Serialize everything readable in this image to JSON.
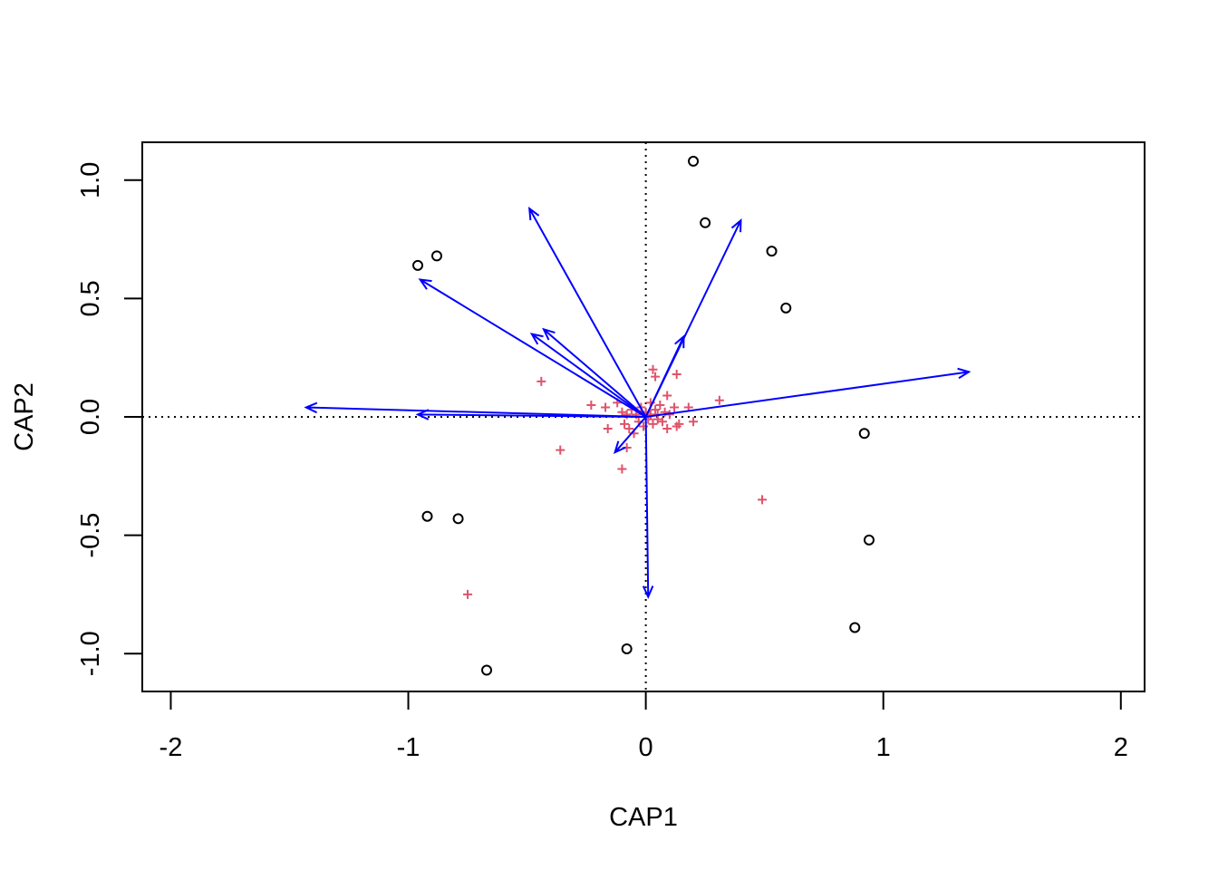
{
  "chart_data": {
    "type": "scatter",
    "title": "",
    "xlabel": "CAP1",
    "ylabel": "CAP2",
    "xlim": [
      -2.12,
      2.1
    ],
    "ylim": [
      -1.16,
      1.16
    ],
    "x_ticks": [
      -2,
      -1,
      0,
      1,
      2
    ],
    "x_tick_labels": [
      "-2",
      "-1",
      "0",
      "1",
      "2"
    ],
    "y_ticks": [
      -1.0,
      -0.5,
      0.0,
      0.5,
      1.0
    ],
    "y_tick_labels": [
      "-1.0",
      "-0.5",
      "0.0",
      "0.5",
      "1.0"
    ],
    "reference_lines": {
      "x": 0,
      "y": 0,
      "style": "dotted"
    },
    "grid": false,
    "legend": "none",
    "colors": {
      "sites": "#000000",
      "species": "#DF536B",
      "arrows": "#0000FF"
    },
    "sites": [
      {
        "x": 0.2,
        "y": 1.08
      },
      {
        "x": 0.25,
        "y": 0.82
      },
      {
        "x": 0.53,
        "y": 0.7
      },
      {
        "x": 0.59,
        "y": 0.46
      },
      {
        "x": -0.96,
        "y": 0.64
      },
      {
        "x": -0.88,
        "y": 0.68
      },
      {
        "x": 0.92,
        "y": -0.07
      },
      {
        "x": 0.94,
        "y": -0.52
      },
      {
        "x": 0.88,
        "y": -0.89
      },
      {
        "x": -0.92,
        "y": -0.42
      },
      {
        "x": -0.79,
        "y": -0.43
      },
      {
        "x": -0.67,
        "y": -1.07
      },
      {
        "x": -0.08,
        "y": -0.98
      }
    ],
    "species": [
      {
        "x": -0.44,
        "y": 0.15
      },
      {
        "x": -0.36,
        "y": -0.14
      },
      {
        "x": -0.75,
        "y": -0.75
      },
      {
        "x": 0.49,
        "y": -0.35
      },
      {
        "x": 0.31,
        "y": 0.07
      },
      {
        "x": -0.1,
        "y": -0.22
      },
      {
        "x": -0.08,
        "y": -0.13
      },
      {
        "x": 0.03,
        "y": 0.2
      },
      {
        "x": 0.04,
        "y": 0.17
      },
      {
        "x": 0.13,
        "y": 0.18
      },
      {
        "x": 0.09,
        "y": 0.09
      },
      {
        "x": -0.23,
        "y": 0.05
      },
      {
        "x": -0.17,
        "y": 0.04
      },
      {
        "x": -0.16,
        "y": -0.05
      },
      {
        "x": -0.12,
        "y": 0.06
      },
      {
        "x": -0.1,
        "y": 0.02
      },
      {
        "x": -0.09,
        "y": -0.03
      },
      {
        "x": -0.08,
        "y": 0.01
      },
      {
        "x": -0.07,
        "y": -0.05
      },
      {
        "x": -0.06,
        "y": 0.03
      },
      {
        "x": -0.05,
        "y": -0.07
      },
      {
        "x": -0.04,
        "y": 0.01
      },
      {
        "x": -0.03,
        "y": -0.02
      },
      {
        "x": -0.02,
        "y": 0.04
      },
      {
        "x": 0.0,
        "y": 0.02
      },
      {
        "x": 0.01,
        "y": -0.01
      },
      {
        "x": 0.02,
        "y": 0.06
      },
      {
        "x": 0.03,
        "y": -0.03
      },
      {
        "x": 0.04,
        "y": 0.03
      },
      {
        "x": 0.05,
        "y": -0.01
      },
      {
        "x": 0.06,
        "y": 0.05
      },
      {
        "x": 0.07,
        "y": -0.02
      },
      {
        "x": 0.08,
        "y": 0.02
      },
      {
        "x": 0.09,
        "y": -0.05
      },
      {
        "x": 0.1,
        "y": 0.01
      },
      {
        "x": 0.12,
        "y": 0.04
      },
      {
        "x": 0.13,
        "y": -0.04
      },
      {
        "x": 0.14,
        "y": -0.03
      },
      {
        "x": 0.18,
        "y": 0.04
      },
      {
        "x": 0.2,
        "y": -0.02
      },
      {
        "x": 0.02,
        "y": 0.01
      },
      {
        "x": 0.05,
        "y": 0.01
      },
      {
        "x": -0.01,
        "y": -0.04
      }
    ],
    "arrows": [
      {
        "x": 1.36,
        "y": 0.19
      },
      {
        "x": -1.43,
        "y": 0.04
      },
      {
        "x": -0.96,
        "y": 0.01
      },
      {
        "x": -0.95,
        "y": 0.58
      },
      {
        "x": -0.49,
        "y": 0.88
      },
      {
        "x": -0.48,
        "y": 0.35
      },
      {
        "x": -0.43,
        "y": 0.37
      },
      {
        "x": 0.4,
        "y": 0.83
      },
      {
        "x": 0.16,
        "y": 0.34
      },
      {
        "x": -0.13,
        "y": -0.15
      },
      {
        "x": 0.01,
        "y": -0.76
      }
    ]
  }
}
